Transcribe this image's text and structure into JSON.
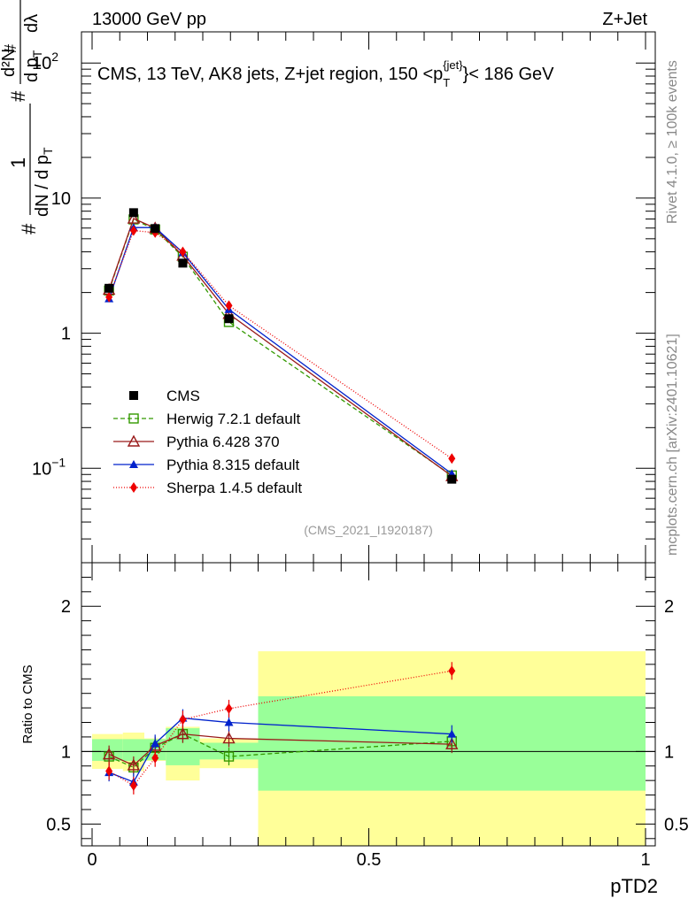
{
  "header": {
    "left": "13000 GeV pp",
    "right": "Z+Jet",
    "side_rivet": "Rivet 4.1.0, ≥ 100k events",
    "side_mcplots": "mcplots.cern.ch [arXiv:2401.10621]"
  },
  "chart_data": {
    "type": "line",
    "title": "CMS, 13 TeV, AK8 jets, Z+jet region, 150 <p_T^{jet}< 186 GeV",
    "title_parts": {
      "main": "CMS, 13 TeV, AK8 jets, Z+jet region, 150 <p",
      "sub": "T",
      "sup": "{jet}",
      "tail": "}< 186 GeV"
    },
    "analysis_tag": "(CMS_2021_I1920187)",
    "xlabel": "pTD2",
    "ylabel": "1/dN/dp_T # d^2N / d p_T dλ",
    "ylabel_parts": {
      "hash": "#",
      "one": "1",
      "numer": "d²N",
      "denom": "dN / d p",
      "denom_sub": "T",
      "d2": "d p",
      "d2_sub": "T",
      "dlam": "dλ"
    },
    "xlim": [
      0,
      1
    ],
    "ylim_main": [
      0.02,
      170
    ],
    "yscale_main": "log",
    "x_ticks": [
      "0",
      "0.5",
      "1"
    ],
    "main_ticks": [
      "1",
      "10"
    ],
    "main_ticks_pow": [
      {
        "base": "10",
        "exp": "−1"
      },
      {
        "base": "10",
        "exp": "2"
      }
    ],
    "ratio": {
      "ylabel": "Ratio to CMS",
      "ylim": [
        0.35,
        2.3
      ],
      "ticks": [
        "0.5",
        "1",
        "2"
      ]
    },
    "legend_position": "lower-left",
    "bands": [
      {
        "x0": 0.0,
        "x1": 0.0556,
        "inner": [
          0.935,
          1.085
        ],
        "outer": [
          0.88,
          1.12
        ]
      },
      {
        "x0": 0.0556,
        "x1": 0.0944,
        "inner": [
          0.935,
          1.085
        ],
        "outer": [
          0.865,
          1.13
        ]
      },
      {
        "x0": 0.0944,
        "x1": 0.1333,
        "inner": [
          0.94,
          1.085
        ],
        "outer": [
          0.935,
          1.09
        ]
      },
      {
        "x0": 0.1333,
        "x1": 0.1944,
        "inner": [
          0.905,
          1.16
        ],
        "outer": [
          0.8,
          1.17
        ]
      },
      {
        "x0": 0.1944,
        "x1": 0.3,
        "inner": [
          0.945,
          1.06
        ],
        "outer": [
          0.885,
          1.09
        ]
      },
      {
        "x0": 0.3,
        "x1": 1.0,
        "inner": [
          0.73,
          1.38
        ],
        "outer": [
          0.35,
          1.69
        ]
      }
    ],
    "series": [
      {
        "name": "CMS",
        "x": [
          0.0306,
          0.075,
          0.1139,
          0.1639,
          0.2472,
          0.65
        ],
        "y": [
          2.15,
          7.8,
          5.95,
          3.3,
          1.28,
          0.083
        ],
        "color": "#000000",
        "marker": "square",
        "dash": "none"
      },
      {
        "name": "Herwig 7.2.1 default",
        "x": [
          0.0306,
          0.075,
          0.1139,
          0.1639,
          0.2472,
          0.65
        ],
        "y": [
          2.07,
          6.95,
          5.85,
          3.68,
          1.21,
          0.0885
        ],
        "ratio": [
          0.965,
          0.89,
          1.025,
          1.12,
          0.965,
          1.07
        ],
        "color": "#339900",
        "marker": "open-square",
        "dash": "5,3"
      },
      {
        "name": "Pythia 6.428 370",
        "x": [
          0.0306,
          0.075,
          0.1139,
          0.1639,
          0.2472,
          0.65
        ],
        "y": [
          2.1,
          7.05,
          6.0,
          3.75,
          1.39,
          0.0875
        ],
        "ratio": [
          0.98,
          0.905,
          1.04,
          1.12,
          1.09,
          1.05
        ],
        "color": "#991a1a",
        "marker": "open-triangle",
        "dash": "none"
      },
      {
        "name": "Pythia 8.315 default",
        "x": [
          0.0306,
          0.075,
          0.1139,
          0.1639,
          0.2472,
          0.65
        ],
        "y": [
          1.8,
          6.05,
          6.05,
          3.95,
          1.5,
          0.091
        ],
        "ratio": [
          0.855,
          0.79,
          1.055,
          1.23,
          1.2,
          1.12
        ],
        "color": "#0022cc",
        "marker": "filled-triangle",
        "dash": "none"
      },
      {
        "name": "Sherpa 1.4.5 default",
        "x": [
          0.0306,
          0.075,
          0.1139,
          0.1639,
          0.2472,
          0.65
        ],
        "y": [
          1.85,
          5.75,
          5.55,
          4.0,
          1.6,
          0.118
        ],
        "ratio": [
          0.865,
          0.765,
          0.955,
          1.22,
          1.295,
          1.555
        ],
        "color": "#ee0000",
        "marker": "diamond",
        "dash": "1,2"
      }
    ]
  }
}
